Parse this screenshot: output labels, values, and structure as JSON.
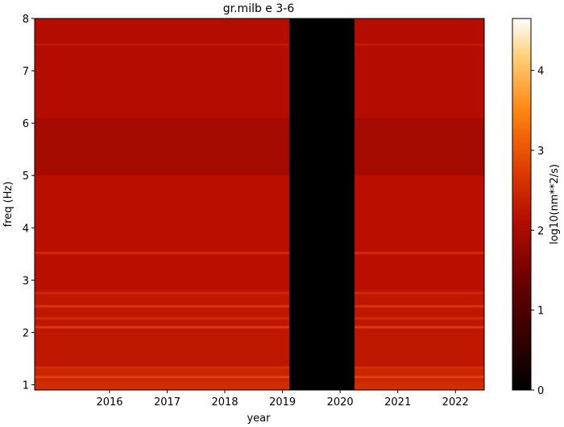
{
  "chart_data": {
    "type": "heatmap",
    "title": "gr.milb e 3-6",
    "xlabel": "year",
    "ylabel": "freq (Hz)",
    "colorbar_label": "log10(nm**2/s)",
    "colormap": "gist_heat",
    "x_ticks": [
      "2016",
      "2017",
      "2018",
      "2019",
      "2020",
      "2021",
      "2022"
    ],
    "xlim": [
      2015.2,
      2023.0
    ],
    "y_ticks": [
      "1",
      "2",
      "3",
      "4",
      "5",
      "6",
      "7",
      "8"
    ],
    "ylim": [
      0.9,
      8.0
    ],
    "colorbar_ticks": [
      "0",
      "1",
      "2",
      "3",
      "4"
    ],
    "colorbar_range": [
      0,
      4.65
    ],
    "gap": {
      "start": 2019.62,
      "end": 2020.75,
      "value": 0
    },
    "background_level": 2.1,
    "band_levels": [
      {
        "freq_min": 0.9,
        "freq_max": 1.05,
        "value": 2.55
      },
      {
        "freq_min": 1.05,
        "freq_max": 1.35,
        "value": 2.45
      },
      {
        "freq_min": 1.35,
        "freq_max": 2.8,
        "value": 2.25
      },
      {
        "freq_min": 2.8,
        "freq_max": 5.0,
        "value": 2.15
      },
      {
        "freq_min": 5.0,
        "freq_max": 6.1,
        "value": 1.95
      },
      {
        "freq_min": 6.1,
        "freq_max": 8.0,
        "value": 2.1
      }
    ],
    "lines": [
      {
        "freq": 1.15,
        "value": 2.85
      },
      {
        "freq": 1.33,
        "value": 2.6
      },
      {
        "freq": 2.1,
        "value": 2.75
      },
      {
        "freq": 2.27,
        "value": 2.55
      },
      {
        "freq": 2.5,
        "value": 2.7
      },
      {
        "freq": 2.75,
        "value": 2.5
      },
      {
        "freq": 3.52,
        "value": 2.55
      },
      {
        "freq": 7.5,
        "value": 2.3
      }
    ]
  }
}
